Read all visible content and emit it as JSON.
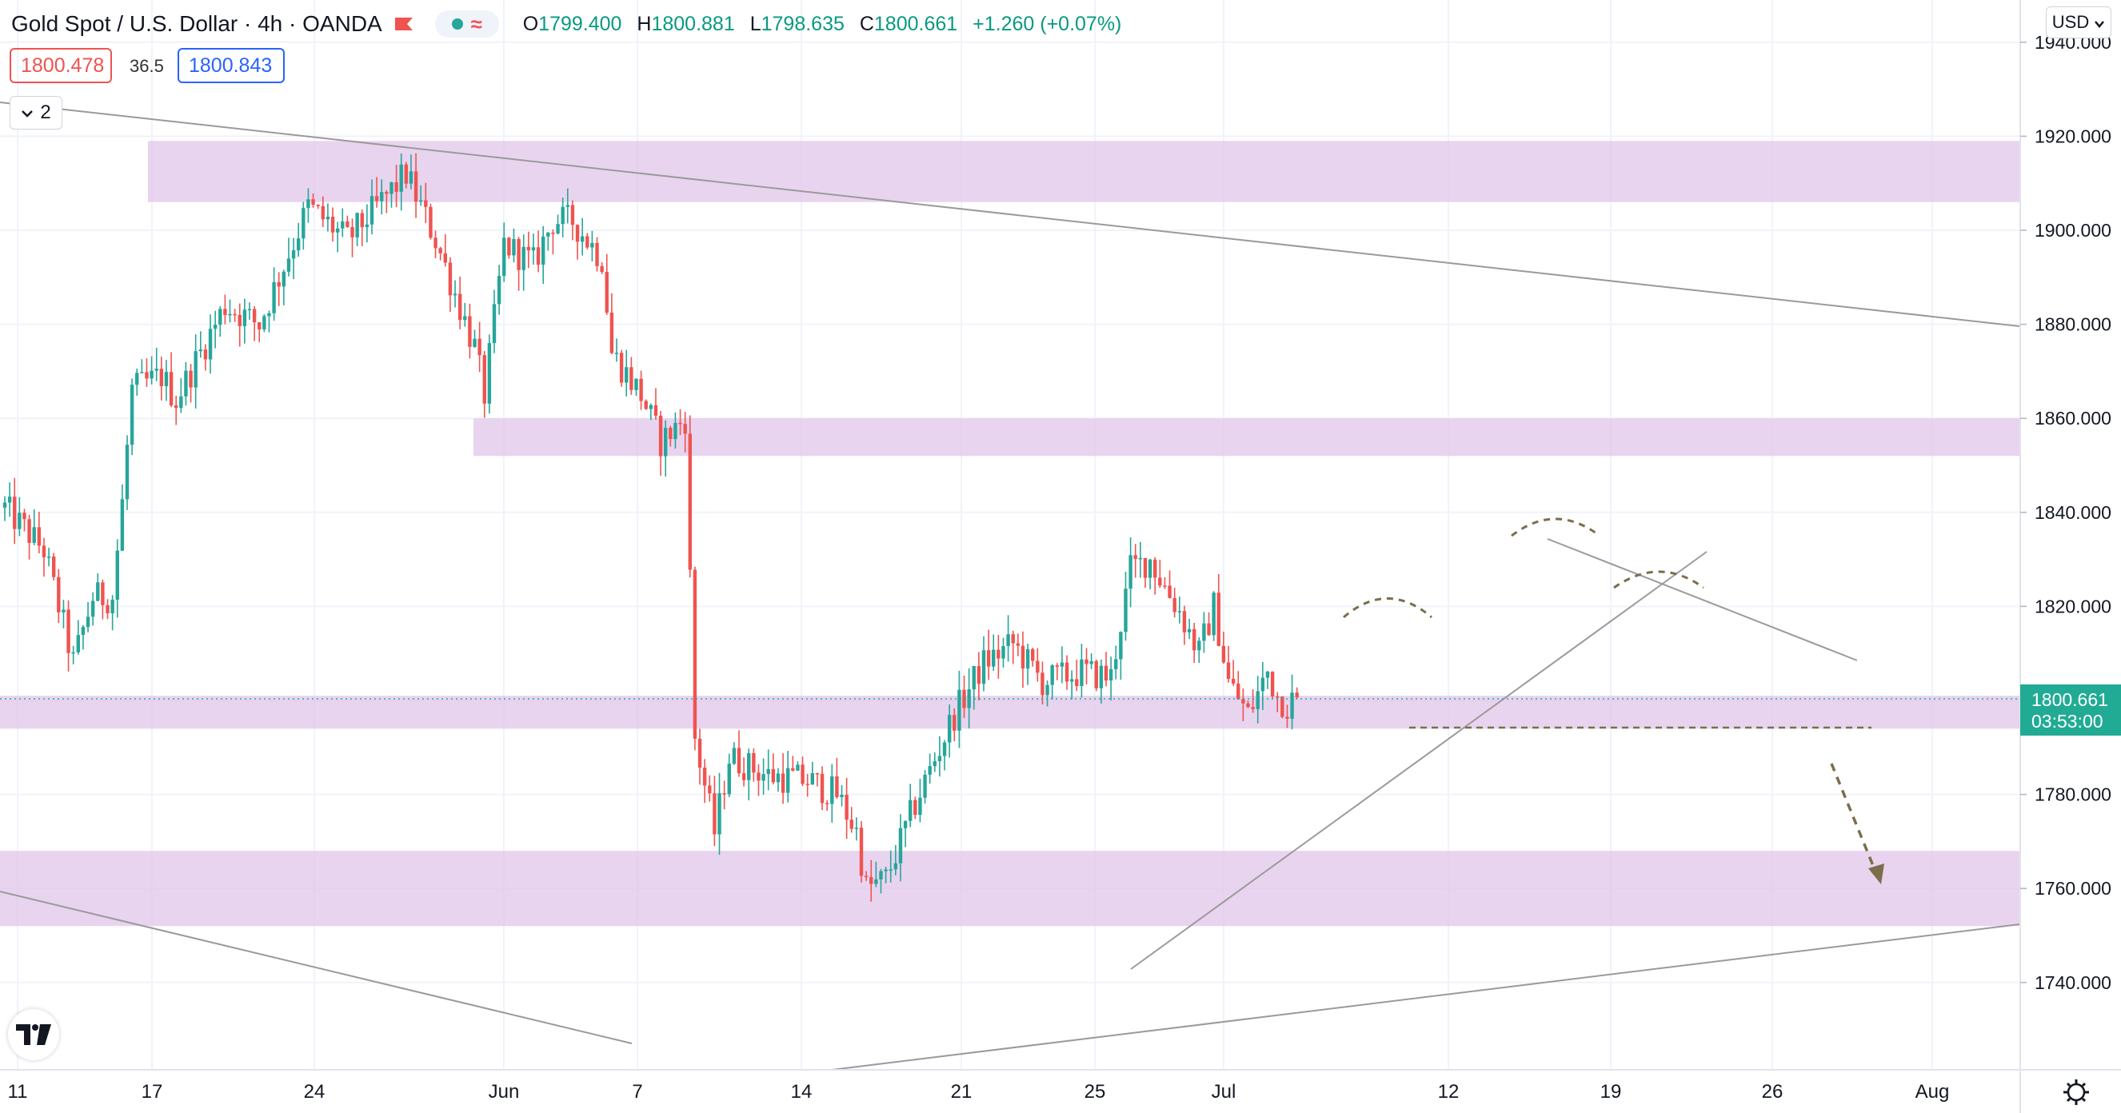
{
  "header": {
    "symbol": "Gold Spot / U.S. Dollar · 4h · OANDA",
    "open_label": "O",
    "open": "1799.400",
    "high_label": "H",
    "high": "1800.881",
    "low_label": "L",
    "low": "1798.635",
    "close_label": "C",
    "close": "1800.661",
    "change": "+1.260 (+0.07%)",
    "sell_price": "1800.478",
    "buy_price": "1800.843",
    "spread": "36.5",
    "indicator_count": "2",
    "currency": "USD"
  },
  "colors": {
    "up": "#26a69a",
    "down": "#ef5350",
    "zone": "#e1c4e9",
    "trendline": "#9a9a9a",
    "annotation": "#7a6e4c",
    "price_label_bg": "#22ab94"
  },
  "icons": [
    "chevron-down-icon",
    "tradingview-logo-icon",
    "settings-gear-icon",
    "flag-icon"
  ],
  "chart_data": {
    "type": "candlestick",
    "title": "Gold Spot / U.S. Dollar",
    "timeframe": "4h",
    "source": "OANDA",
    "y_ticks": [
      "1940.000",
      "1920.000",
      "1900.000",
      "1880.000",
      "1860.000",
      "1840.000",
      "1820.000",
      "1800.000",
      "1780.000",
      "1760.000",
      "1740.000"
    ],
    "x_ticks": [
      "11",
      "17",
      "24",
      "Jun",
      "7",
      "14",
      "21",
      "25",
      "Jul",
      "12",
      "19",
      "26",
      "Aug"
    ],
    "ylim": [
      1726,
      1945
    ],
    "last_price": "1800.661",
    "countdown": "03:53:00",
    "price_path": [
      [
        0,
        1841
      ],
      [
        8,
        1832
      ],
      [
        14,
        1808
      ],
      [
        18,
        1822
      ],
      [
        22,
        1822
      ],
      [
        24,
        1842
      ],
      [
        26,
        1866
      ],
      [
        32,
        1869
      ],
      [
        35,
        1864
      ],
      [
        45,
        1884
      ],
      [
        52,
        1880
      ],
      [
        62,
        1905
      ],
      [
        70,
        1898
      ],
      [
        82,
        1912
      ],
      [
        88,
        1898
      ],
      [
        96,
        1875
      ],
      [
        98,
        1865
      ],
      [
        102,
        1897
      ],
      [
        108,
        1893
      ],
      [
        112,
        1902
      ],
      [
        116,
        1902
      ],
      [
        122,
        1894
      ],
      [
        124,
        1874
      ],
      [
        130,
        1865
      ],
      [
        134,
        1855
      ],
      [
        139,
        1860
      ],
      [
        141,
        1792
      ],
      [
        145,
        1772
      ],
      [
        148,
        1788
      ],
      [
        156,
        1784
      ],
      [
        164,
        1783
      ],
      [
        170,
        1780
      ],
      [
        174,
        1772
      ],
      [
        176,
        1760
      ],
      [
        180,
        1762
      ],
      [
        186,
        1778
      ],
      [
        194,
        1797
      ],
      [
        200,
        1808
      ],
      [
        206,
        1812
      ],
      [
        212,
        1804
      ],
      [
        220,
        1806
      ],
      [
        226,
        1805
      ],
      [
        230,
        1828
      ],
      [
        234,
        1830
      ],
      [
        236,
        1826
      ],
      [
        240,
        1819
      ],
      [
        244,
        1810
      ],
      [
        247,
        1820
      ],
      [
        250,
        1804
      ],
      [
        254,
        1797
      ],
      [
        258,
        1806
      ],
      [
        260,
        1801
      ],
      [
        262,
        1799
      ],
      [
        264,
        1801
      ]
    ],
    "zones": [
      [
        1906,
        1919
      ],
      [
        1852,
        1860
      ],
      [
        1794,
        1801
      ],
      [
        1752,
        1768
      ]
    ],
    "legend": "none",
    "grid": true
  }
}
